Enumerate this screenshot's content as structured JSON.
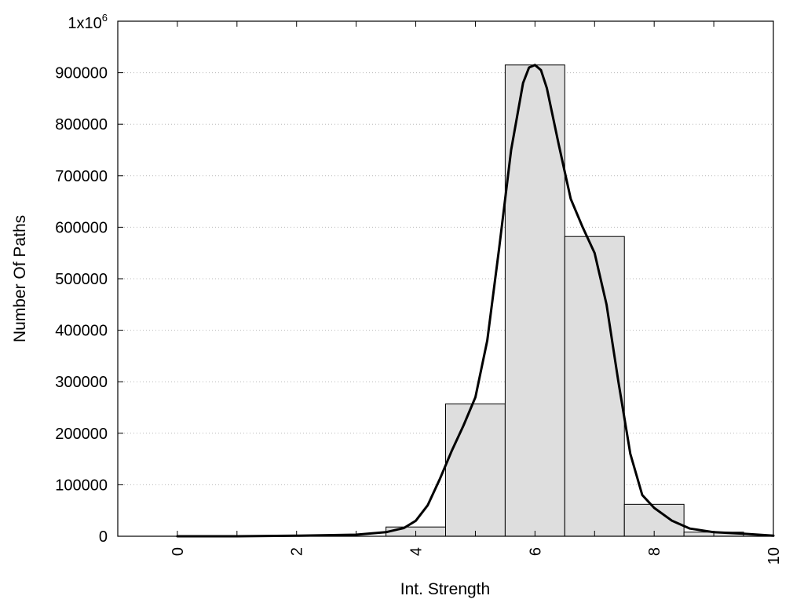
{
  "chart_data": {
    "type": "bar",
    "title": "",
    "xlabel": "Int. Strength",
    "ylabel": "Number Of Paths",
    "xlim": [
      -1,
      10
    ],
    "ylim": [
      0,
      1000000
    ],
    "x_ticks": [
      "0",
      "2",
      "4",
      "6",
      "8",
      "10"
    ],
    "y_ticks": [
      "0",
      "100000",
      "200000",
      "300000",
      "400000",
      "500000",
      "600000",
      "700000",
      "800000",
      "900000"
    ],
    "y_top_label": {
      "base": "1x10",
      "exponent": "6"
    },
    "grid": "horizontal dotted",
    "bars": {
      "bin_width": 1,
      "centers": [
        0,
        1,
        2,
        3,
        4,
        5,
        6,
        7,
        8,
        9
      ],
      "values": [
        0,
        0,
        0,
        0,
        18000,
        257000,
        915000,
        582000,
        62000,
        8000
      ],
      "fill": "#dedede",
      "stroke": "#000000"
    },
    "curve": {
      "color": "#000000",
      "x": [
        0,
        1,
        2,
        3,
        3.5,
        3.8,
        4.0,
        4.2,
        4.4,
        4.6,
        4.8,
        5.0,
        5.2,
        5.4,
        5.6,
        5.8,
        5.9,
        6.0,
        6.1,
        6.2,
        6.4,
        6.6,
        6.8,
        7.0,
        7.2,
        7.4,
        7.6,
        7.8,
        8.0,
        8.3,
        8.6,
        9.0,
        9.5,
        10.0
      ],
      "y": [
        0,
        0,
        1000,
        3000,
        8000,
        16000,
        30000,
        60000,
        110000,
        165000,
        215000,
        270000,
        380000,
        560000,
        750000,
        880000,
        910000,
        915000,
        905000,
        870000,
        760000,
        655000,
        600000,
        550000,
        450000,
        300000,
        160000,
        80000,
        55000,
        30000,
        15000,
        8000,
        5000,
        1000
      ]
    }
  }
}
